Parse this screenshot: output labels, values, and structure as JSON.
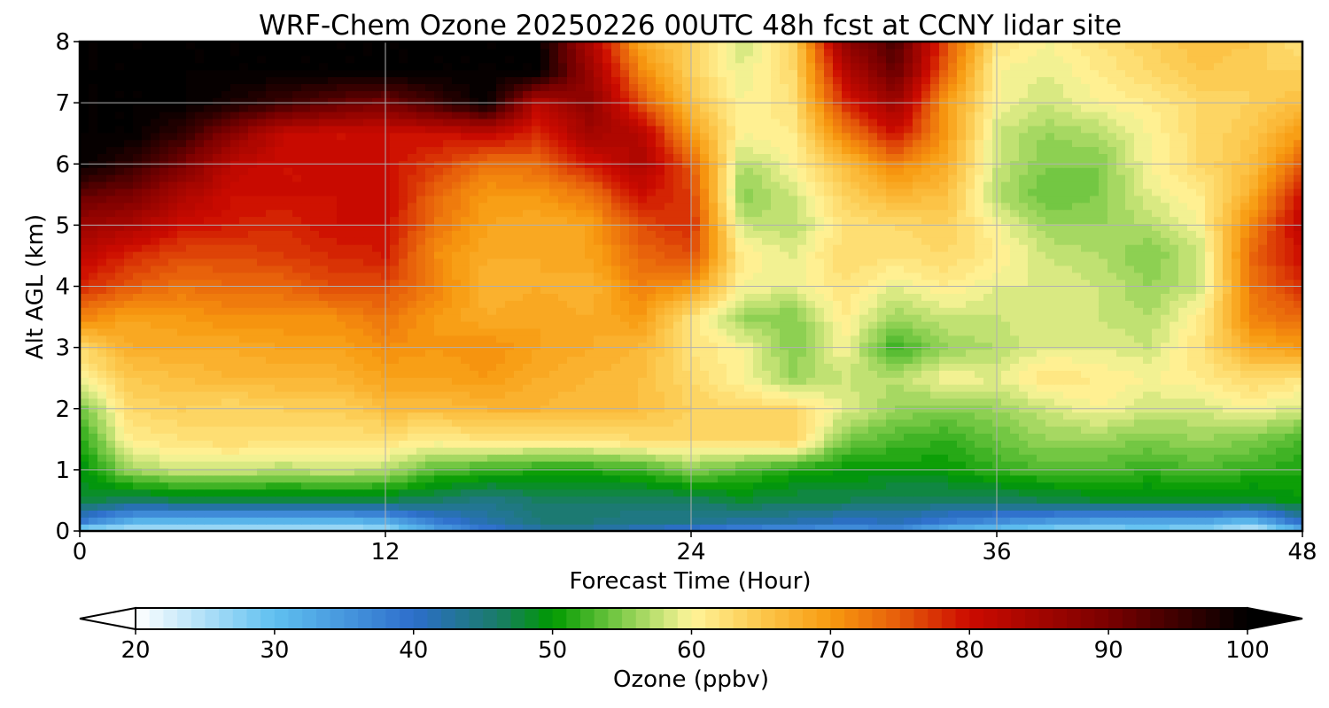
{
  "chart_data": {
    "type": "heatmap",
    "subtype": "filled-contour",
    "title": "WRF-Chem Ozone  20250226 00UTC 48h fcst at CCNY lidar site",
    "xlabel": "Forecast Time (Hour)",
    "ylabel": "Alt AGL (km)",
    "xlim": [
      0,
      48
    ],
    "ylim": [
      0,
      8
    ],
    "xticks": [
      "0",
      "12",
      "24",
      "36",
      "48"
    ],
    "yticks": [
      "0",
      "1",
      "2",
      "3",
      "4",
      "5",
      "6",
      "7",
      "8"
    ],
    "grid": true,
    "colorbar": {
      "label": "Ozone  (ppbv)",
      "orientation": "horizontal",
      "location": "bottom",
      "range": [
        20,
        100
      ],
      "extend": "both",
      "ticks": [
        "20",
        "30",
        "40",
        "50",
        "60",
        "70",
        "80",
        "90",
        "100"
      ],
      "colormap_stops": [
        {
          "value": 20,
          "color": "#ffffff"
        },
        {
          "value": 30,
          "color": "#5fc0f0"
        },
        {
          "value": 40,
          "color": "#2d6ecb"
        },
        {
          "value": 46,
          "color": "#1a7b6a"
        },
        {
          "value": 50,
          "color": "#009a00"
        },
        {
          "value": 55,
          "color": "#80cc4a"
        },
        {
          "value": 60,
          "color": "#fff59a"
        },
        {
          "value": 65,
          "color": "#fcc74c"
        },
        {
          "value": 70,
          "color": "#f89a10"
        },
        {
          "value": 75,
          "color": "#e65c0a"
        },
        {
          "value": 80,
          "color": "#cc0a00"
        },
        {
          "value": 90,
          "color": "#7a0000"
        },
        {
          "value": 100,
          "color": "#000000"
        }
      ]
    },
    "x": [
      0,
      2,
      4,
      6,
      8,
      10,
      12,
      14,
      16,
      18,
      20,
      22,
      24,
      26,
      28,
      30,
      32,
      34,
      36,
      38,
      40,
      42,
      44,
      46,
      48
    ],
    "y": [
      0,
      0.15,
      0.5,
      1,
      1.5,
      2,
      2.5,
      3,
      3.5,
      4,
      4.5,
      5,
      5.5,
      6,
      6.5,
      7,
      7.5,
      8
    ],
    "z": [
      [
        24,
        24,
        24,
        24,
        24,
        24,
        25,
        33,
        38,
        42,
        42,
        40,
        38,
        36,
        35,
        34,
        36,
        30,
        28,
        26,
        26,
        27,
        26,
        22,
        30
      ],
      [
        38,
        31,
        30,
        30,
        30,
        30,
        32,
        38,
        42,
        45,
        45,
        44,
        44,
        42,
        42,
        40,
        41,
        38,
        36,
        34,
        33,
        33,
        33,
        30,
        40
      ],
      [
        48,
        46,
        47,
        47,
        47,
        47,
        47,
        46,
        44,
        46,
        46,
        46,
        46,
        48,
        47,
        47,
        46,
        46,
        46,
        47,
        48,
        48,
        48,
        48,
        50
      ],
      [
        49,
        56,
        58,
        58,
        57,
        58,
        57,
        53,
        52,
        51,
        51,
        52,
        55,
        53,
        51,
        50,
        50,
        50,
        52,
        53,
        53,
        52,
        53,
        52,
        51
      ],
      [
        51,
        61,
        62,
        63,
        62,
        62,
        62,
        61,
        62,
        62,
        62,
        63,
        63,
        63,
        64,
        55,
        53,
        52,
        54,
        56,
        56,
        55,
        56,
        55,
        53
      ],
      [
        54,
        63,
        64,
        63,
        64,
        64,
        66,
        66,
        67,
        67,
        66,
        66,
        64,
        63,
        63,
        59,
        56,
        55,
        56,
        58,
        60,
        58,
        58,
        60,
        58
      ],
      [
        60,
        65,
        66,
        67,
        67,
        67,
        69,
        69,
        70,
        68,
        67,
        66,
        63,
        60,
        56,
        58,
        57,
        60,
        59,
        62,
        61,
        60,
        61,
        63,
        62
      ],
      [
        63,
        68,
        68,
        68,
        69,
        69,
        71,
        70,
        71,
        69,
        68,
        67,
        62,
        60,
        55,
        60,
        52,
        56,
        57,
        59,
        59,
        58,
        62,
        68,
        70
      ],
      [
        72,
        69,
        70,
        71,
        71,
        71,
        73,
        70,
        68,
        69,
        68,
        70,
        62,
        56,
        55,
        61,
        56,
        58,
        58,
        59,
        58,
        57,
        61,
        72,
        74
      ],
      [
        78,
        75,
        73,
        74,
        74,
        76,
        76,
        72,
        67,
        68,
        67,
        72,
        70,
        60,
        59,
        62,
        59,
        61,
        59,
        59,
        58,
        56,
        58,
        73,
        78
      ],
      [
        82,
        78,
        76,
        76,
        77,
        78,
        79,
        71,
        68,
        68,
        69,
        74,
        76,
        61,
        59,
        63,
        62,
        63,
        61,
        58,
        57,
        55,
        58,
        74,
        80
      ],
      [
        86,
        84,
        80,
        79,
        78,
        80,
        80,
        73,
        69,
        68,
        69,
        76,
        78,
        58,
        57,
        62,
        63,
        64,
        60,
        56,
        56,
        57,
        60,
        72,
        82
      ],
      [
        92,
        90,
        84,
        80,
        80,
        80,
        81,
        74,
        70,
        70,
        73,
        80,
        77,
        55,
        58,
        64,
        67,
        66,
        57,
        54,
        55,
        59,
        61,
        68,
        80
      ],
      [
        100,
        96,
        90,
        82,
        80,
        80,
        80,
        77,
        73,
        74,
        79,
        84,
        75,
        57,
        60,
        66,
        72,
        68,
        58,
        55,
        55,
        60,
        63,
        66,
        75
      ],
      [
        100,
        100,
        96,
        88,
        81,
        80,
        80,
        80,
        81,
        78,
        85,
        83,
        70,
        60,
        61,
        72,
        80,
        70,
        58,
        56,
        57,
        60,
        63,
        65,
        70
      ],
      [
        100,
        100,
        100,
        98,
        95,
        92,
        90,
        95,
        100,
        82,
        88,
        76,
        66,
        60,
        62,
        78,
        86,
        70,
        60,
        58,
        60,
        61,
        63,
        64,
        66
      ],
      [
        100,
        100,
        100,
        100,
        100,
        100,
        100,
        100,
        100,
        100,
        86,
        72,
        64,
        59,
        63,
        82,
        92,
        74,
        60,
        59,
        61,
        63,
        65,
        64,
        64
      ],
      [
        100,
        100,
        100,
        100,
        100,
        100,
        100,
        100,
        100,
        100,
        84,
        68,
        64,
        58,
        63,
        87,
        94,
        76,
        62,
        60,
        62,
        64,
        66,
        65,
        62
      ]
    ]
  }
}
